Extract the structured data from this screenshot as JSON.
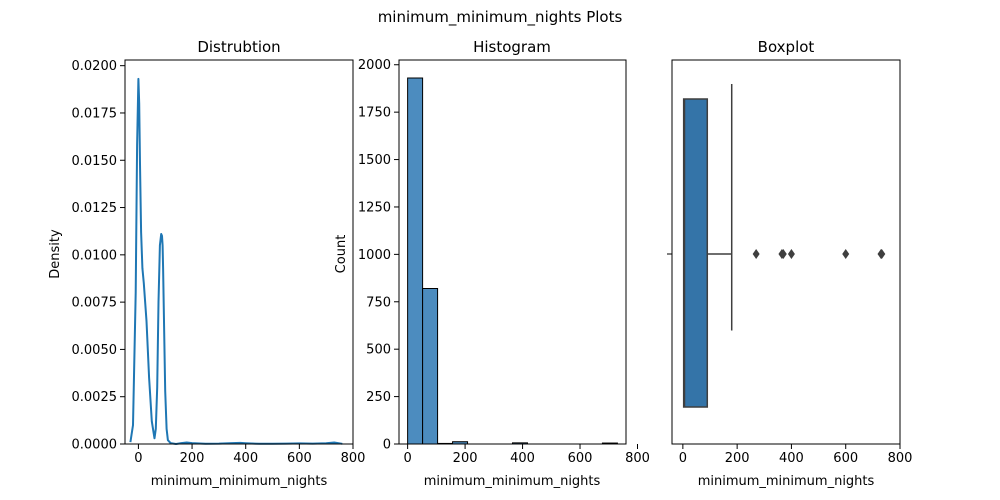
{
  "figure": {
    "title": "minimum_minimum_nights Plots"
  },
  "colors": {
    "line": "#1f77b4",
    "hist_bar": "#4c8cbf",
    "box": "#3474a8",
    "dark": "#3f3f3f"
  },
  "chart_data": [
    {
      "type": "line",
      "title": "Distrubtion",
      "xlabel": "minimum_minimum_nights",
      "ylabel": "Density",
      "xlim": [
        -50,
        800
      ],
      "ylim": [
        0,
        0.0203
      ],
      "x_ticks": [
        0,
        200,
        400,
        600,
        800
      ],
      "y_ticks": [
        0.0,
        0.0025,
        0.005,
        0.0075,
        0.01,
        0.0125,
        0.015,
        0.0175,
        0.02
      ],
      "y_tick_labels": [
        "0.0000",
        "0.0025",
        "0.0050",
        "0.0075",
        "0.0100",
        "0.0125",
        "0.0150",
        "0.0175",
        "0.0200"
      ],
      "x_tick_labels": [
        "0",
        "200",
        "400",
        "600",
        "800"
      ],
      "series": [
        {
          "x": [
            -30,
            -20,
            -10,
            -5,
            0,
            3,
            6,
            10,
            15,
            20,
            30,
            40,
            50,
            60,
            65,
            70,
            75,
            80,
            85,
            88,
            90,
            92,
            95,
            100,
            105,
            110,
            120,
            140,
            160,
            180,
            200,
            250,
            300,
            350,
            380,
            400,
            450,
            500,
            550,
            600,
            650,
            700,
            730,
            760
          ],
          "y": [
            0.0001,
            0.001,
            0.008,
            0.0158,
            0.0193,
            0.018,
            0.0148,
            0.0112,
            0.0093,
            0.0085,
            0.0065,
            0.0035,
            0.0012,
            0.0003,
            0.0008,
            0.003,
            0.0075,
            0.0105,
            0.0111,
            0.011,
            0.0105,
            0.0093,
            0.0068,
            0.0028,
            0.0008,
            0.0002,
            5e-05,
            0.0,
            5e-05,
            8e-05,
            5e-05,
            1e-05,
            2e-05,
            5e-05,
            6e-05,
            4e-05,
            1e-05,
            1e-05,
            2e-05,
            3e-05,
            2e-05,
            4e-05,
            8e-05,
            1e-05
          ]
        }
      ]
    },
    {
      "type": "bar",
      "title": "Histogram",
      "xlabel": "minimum_minimum_nights",
      "ylabel": "Count",
      "xlim": [
        -30,
        760
      ],
      "ylim": [
        0,
        2025
      ],
      "x_ticks": [
        0,
        200,
        400,
        600,
        800
      ],
      "x_tick_labels": [
        "0",
        "200",
        "400",
        "600",
        "800"
      ],
      "y_ticks": [
        0,
        250,
        500,
        750,
        1000,
        1250,
        1500,
        1750,
        2000
      ],
      "y_tick_labels": [
        "0",
        "250",
        "500",
        "750",
        "1000",
        "1250",
        "1500",
        "1750",
        "2000"
      ],
      "bin_width": 52.14,
      "bins": [
        {
          "start": 0,
          "count": 1930
        },
        {
          "start": 52.14,
          "count": 820
        },
        {
          "start": 104.29,
          "count": 3
        },
        {
          "start": 156.43,
          "count": 12
        },
        {
          "start": 365,
          "count": 6
        },
        {
          "start": 678,
          "count": 5
        }
      ]
    },
    {
      "type": "box",
      "title": "Boxplot",
      "xlabel": "minimum_minimum_nights",
      "xlim": [
        -40,
        800
      ],
      "x_ticks": [
        0,
        200,
        400,
        600,
        800
      ],
      "x_tick_labels": [
        "0",
        "200",
        "400",
        "600",
        "800"
      ],
      "whisker_low": 1,
      "q1": 3,
      "median": 6,
      "q3": 90,
      "whisker_high": 180,
      "fliers": [
        270,
        365,
        370,
        400,
        600,
        730,
        733
      ]
    }
  ]
}
